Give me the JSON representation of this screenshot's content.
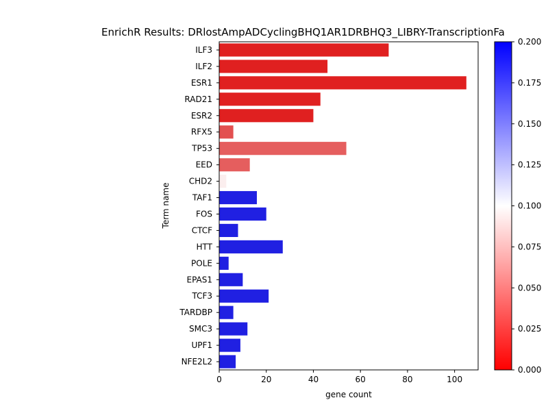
{
  "chart_data": {
    "type": "bar",
    "orientation": "horizontal",
    "title": "EnrichR Results: DRlostAmpADCyclingBHQ1AR1DRBHQ3_LIBRY-TranscriptionFa",
    "xlabel": "gene count",
    "ylabel": "Term name",
    "xlim": [
      0,
      110
    ],
    "xticks": [
      0,
      20,
      40,
      60,
      80,
      100
    ],
    "categories": [
      "ILF3",
      "ILF2",
      "ESR1",
      "RAD21",
      "ESR2",
      "RFX5",
      "TP53",
      "EED",
      "CHD2",
      "TAF1",
      "FOS",
      "CTCF",
      "HTT",
      "POLE",
      "EPAS1",
      "TCF3",
      "TARDBP",
      "SMC3",
      "UPF1",
      "NFE2L2"
    ],
    "values": [
      72,
      46,
      105,
      43,
      40,
      6,
      54,
      13,
      3,
      16,
      20,
      8,
      27,
      4,
      10,
      21,
      6,
      12,
      9,
      7
    ],
    "bar_colors": [
      "#e02020",
      "#e02020",
      "#e02020",
      "#e02020",
      "#e02020",
      "#e35050",
      "#e55e5e",
      "#e55e5e",
      "#fbeeee",
      "#2020e2",
      "#2020e2",
      "#2020e2",
      "#2020e2",
      "#2020e2",
      "#2020e2",
      "#2020e2",
      "#2020e2",
      "#2020e2",
      "#2020e2",
      "#2020e2"
    ],
    "colorbar": {
      "cmap": "bwr_r",
      "range": [
        0.0,
        0.2
      ],
      "ticks": [
        "0.000",
        "0.025",
        "0.050",
        "0.075",
        "0.100",
        "0.125",
        "0.150",
        "0.175",
        "0.200"
      ],
      "color_low": "#ff0000",
      "color_mid": "#ffffff",
      "color_high": "#0000ff"
    },
    "grid": false,
    "legend": "none"
  }
}
